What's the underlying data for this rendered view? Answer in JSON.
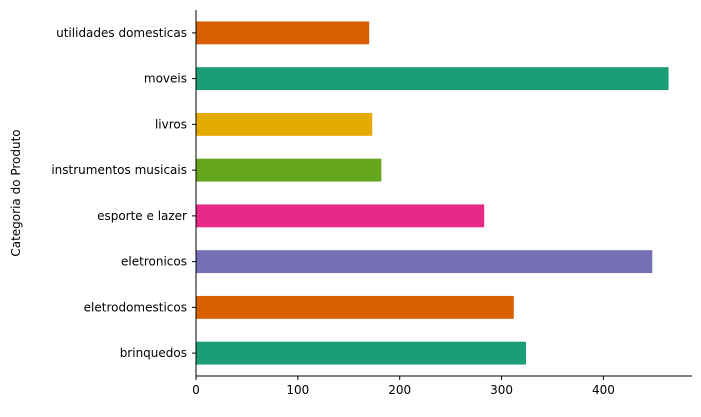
{
  "chart_data": {
    "type": "bar",
    "orientation": "horizontal",
    "categories": [
      "utilidades domesticas",
      "moveis",
      "livros",
      "instrumentos musicais",
      "esporte e lazer",
      "eletronicos",
      "eletrodomesticos",
      "brinquedos"
    ],
    "values": [
      170,
      464,
      173,
      182,
      283,
      448,
      312,
      324
    ],
    "colors": [
      "#d95f02",
      "#1b9e77",
      "#e6ab02",
      "#66a61e",
      "#e7298a",
      "#7570b3",
      "#d95f02",
      "#1b9e77"
    ],
    "xlabel": "",
    "ylabel": "Categoria do Produto",
    "xlim": [
      0,
      487
    ],
    "xticks": [
      0,
      100,
      200,
      300,
      400
    ],
    "grid": false,
    "spines": "left-bottom"
  }
}
